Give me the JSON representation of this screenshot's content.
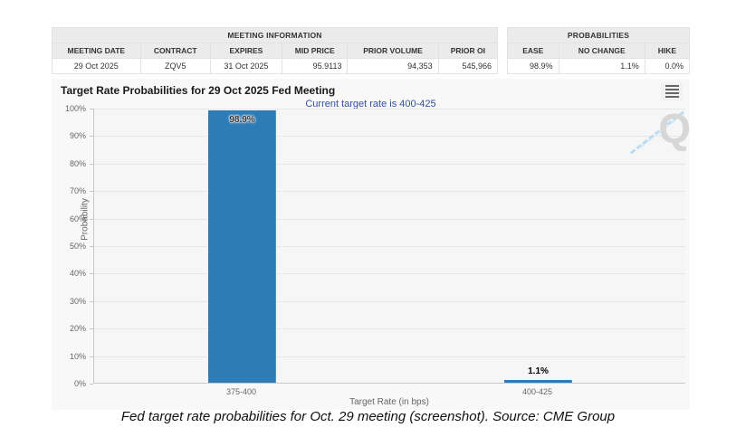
{
  "meeting_info_table": {
    "title": "MEETING INFORMATION",
    "columns": [
      "MEETING DATE",
      "CONTRACT",
      "EXPIRES",
      "MID PRICE",
      "PRIOR VOLUME",
      "PRIOR OI"
    ],
    "row": [
      "29 Oct 2025",
      "ZQV5",
      "31 Oct 2025",
      "95.9113",
      "94,353",
      "545,966"
    ]
  },
  "probabilities_table": {
    "title": "PROBABILITIES",
    "columns": [
      "EASE",
      "NO CHANGE",
      "HIKE"
    ],
    "row": [
      "98.9%",
      "1.1%",
      "0.0%"
    ]
  },
  "chart": {
    "title": "Target Rate Probabilities for 29 Oct 2025 Fed Meeting",
    "subtitle": "Current target rate is 400-425",
    "watermark_letter": "Q",
    "menu_icon": "hamburger-menu-icon"
  },
  "chart_data": {
    "type": "bar",
    "title": "Target Rate Probabilities for 29 Oct 2025 Fed Meeting",
    "subtitle": "Current target rate is 400-425",
    "categories": [
      "375-400",
      "400-425"
    ],
    "values": [
      98.9,
      1.1
    ],
    "value_labels": [
      "98.9%",
      "1.1%"
    ],
    "xlabel": "Target Rate (in bps)",
    "ylabel": "Probability",
    "ylim": [
      0,
      100
    ],
    "ytick_step": 10,
    "ytick_suffix": "%",
    "grid": "horizontal-dotted",
    "legend": "none",
    "bar_color": "#2d7cb8"
  },
  "colors": {
    "bar": "#2d7cb8",
    "subtitle_text": "#34519c",
    "chart_background": "#f8f8f8",
    "table_header_background": "#ebebeb",
    "axis_text": "#666666",
    "watermark_blue": "#b7dcf2"
  },
  "caption": "Fed target rate probabilities for Oct. 29 meeting (screenshot). Source: CME Group"
}
